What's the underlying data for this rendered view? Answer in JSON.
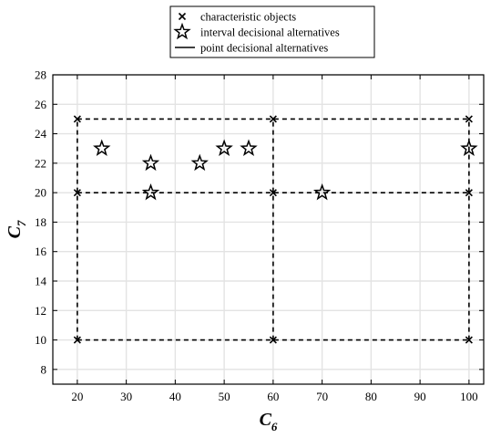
{
  "chart_data": {
    "type": "scatter",
    "xlabel": "C",
    "xlabel_sub": "6",
    "ylabel": "C",
    "ylabel_sub": "7",
    "xlim": [
      15,
      103
    ],
    "ylim": [
      7,
      28
    ],
    "xticks": [
      20,
      30,
      40,
      50,
      60,
      70,
      80,
      90,
      100
    ],
    "yticks": [
      8,
      10,
      12,
      14,
      16,
      18,
      20,
      22,
      24,
      26,
      28
    ],
    "grid": true,
    "legend_position": "top-center",
    "legend": [
      {
        "label": "characteristic objects",
        "marker": "x"
      },
      {
        "label": "interval decisional alternatives",
        "marker": "star"
      },
      {
        "label": "point decisional alternatives",
        "marker": "line"
      }
    ],
    "series": [
      {
        "name": "characteristic objects",
        "marker": "x",
        "points": [
          [
            20,
            10
          ],
          [
            20,
            20
          ],
          [
            20,
            25
          ],
          [
            60,
            10
          ],
          [
            60,
            20
          ],
          [
            60,
            25
          ],
          [
            100,
            10
          ],
          [
            100,
            20
          ],
          [
            100,
            25
          ]
        ]
      },
      {
        "name": "interval decisional alternatives",
        "marker": "star",
        "points": [
          [
            25,
            23
          ],
          [
            35,
            22
          ],
          [
            35,
            20
          ],
          [
            45,
            22
          ],
          [
            50,
            23
          ],
          [
            55,
            23
          ],
          [
            70,
            20
          ],
          [
            100,
            23
          ]
        ]
      }
    ],
    "grid_lines_dashed": {
      "x": [
        20,
        60,
        100
      ],
      "y": [
        10,
        20,
        25
      ],
      "x_range": [
        20,
        100
      ],
      "y_range": [
        10,
        25
      ]
    }
  }
}
